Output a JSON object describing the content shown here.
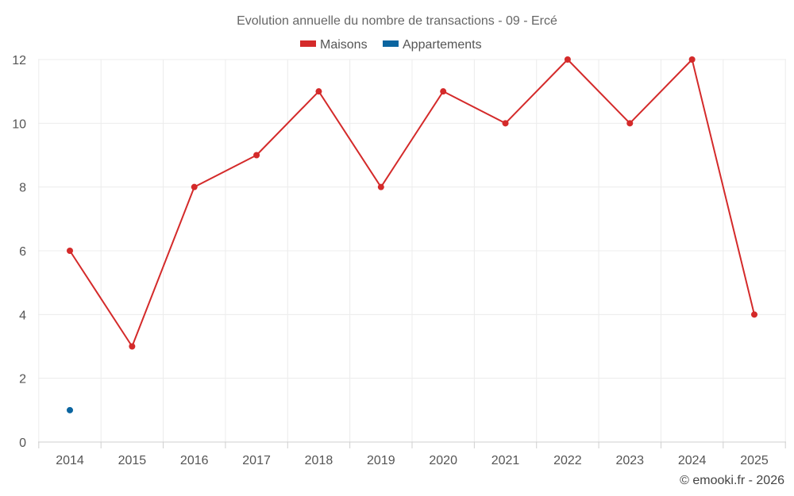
{
  "chart_data": {
    "type": "line",
    "title": "Evolution annuelle du nombre de transactions - 09 - Ercé",
    "categories": [
      "2014",
      "2015",
      "2016",
      "2017",
      "2018",
      "2019",
      "2020",
      "2021",
      "2022",
      "2023",
      "2024",
      "2025"
    ],
    "ylim": [
      0,
      12
    ],
    "yticks": [
      0,
      2,
      4,
      6,
      8,
      10,
      12
    ],
    "grid": true,
    "legend_position": "top",
    "series": [
      {
        "name": "Maisons",
        "color": "#d42a2a",
        "values": [
          6,
          3,
          8,
          9,
          11,
          8,
          11,
          10,
          12,
          10,
          12,
          4
        ]
      },
      {
        "name": "Appartements",
        "color": "#0b65a0",
        "values": [
          1,
          null,
          null,
          null,
          null,
          null,
          null,
          null,
          null,
          null,
          null,
          null
        ]
      }
    ]
  },
  "credit": "© emooki.fr - 2026"
}
